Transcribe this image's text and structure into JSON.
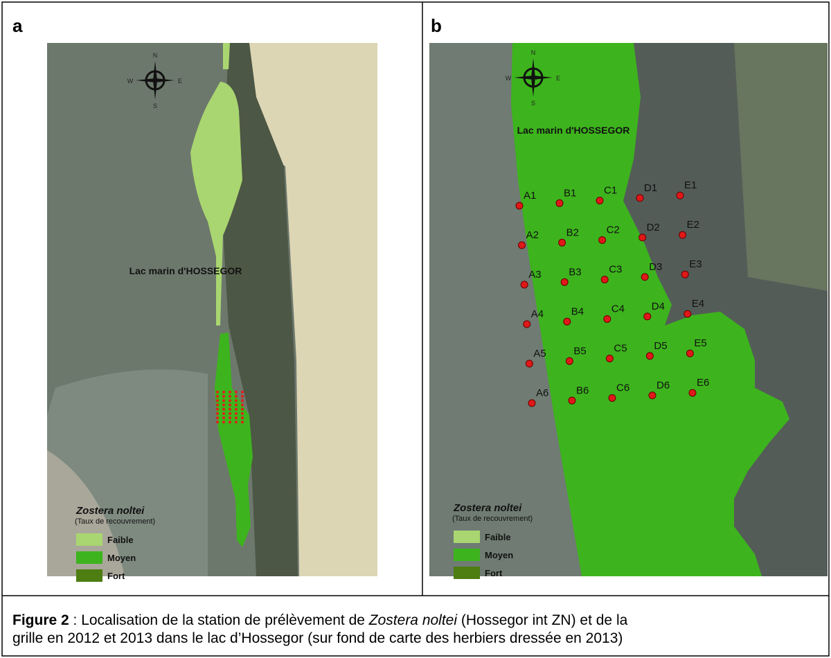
{
  "panels": [
    {
      "label": "a",
      "compass": {
        "n": "N",
        "e": "E",
        "s": "S",
        "w": "W"
      },
      "place_label": "Lac marin d'HOSSEGOR",
      "legend": {
        "title": "Zostera noltei",
        "subtitle": "(Taux de recouvrement)",
        "items": [
          {
            "name": "Faible",
            "color": "#a9d670"
          },
          {
            "name": "Moyen",
            "color": "#3db41d"
          },
          {
            "name": "Fort",
            "color": "#4e7d12"
          }
        ]
      }
    },
    {
      "label": "b",
      "compass": {
        "n": "N",
        "e": "E",
        "s": "S",
        "w": "W"
      },
      "place_label": "Lac marin d'HOSSEGOR",
      "legend": {
        "title": "Zostera noltei",
        "subtitle": "(Taux de recouvrement)",
        "items": [
          {
            "name": "Faible",
            "color": "#a9d670"
          },
          {
            "name": "Moyen",
            "color": "#3db41d"
          },
          {
            "name": "Fort",
            "color": "#4e7d12"
          }
        ]
      },
      "stations": [
        [
          "A1",
          "B1",
          "C1",
          "D1",
          "E1"
        ],
        [
          "A2",
          "B2",
          "C2",
          "D2",
          "E2"
        ],
        [
          "A3",
          "B3",
          "C3",
          "D3",
          "E3"
        ],
        [
          "A4",
          "B4",
          "C4",
          "D4",
          "E4"
        ],
        [
          "A5",
          "B5",
          "C5",
          "D5",
          "E5"
        ],
        [
          "A6",
          "B6",
          "C6",
          "D6",
          "E6"
        ]
      ]
    }
  ],
  "caption": {
    "figure": "Figure 2",
    "text1": " : Localisation de la station de prélèvement de ",
    "species": "Zostera noltei",
    "text2": " (Hossegor int ZN) et de la",
    "line2": "grille en 2012 et 2013 dans le lac d’Hossegor (sur fond de carte des herbiers dressée en 2013)"
  }
}
